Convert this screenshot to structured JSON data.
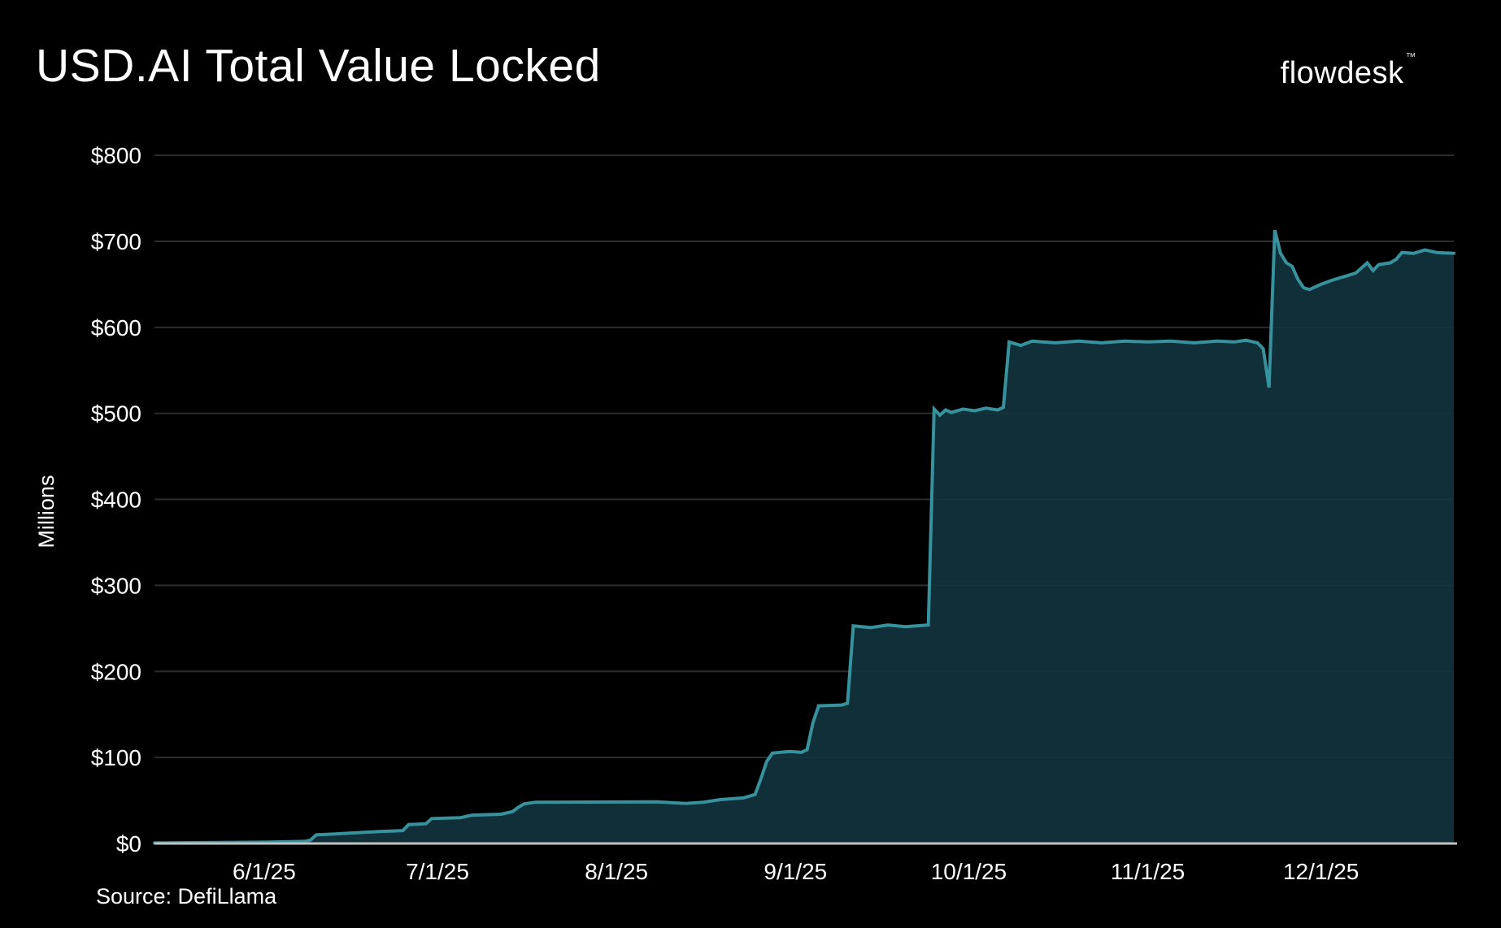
{
  "header": {
    "logo_text": "flowdesk",
    "logo_trademark": "™"
  },
  "chart_data": {
    "type": "area",
    "title": "USD.AI Total Value Locked",
    "ylabel": "Millions",
    "source": "Source: DefiLlama",
    "y_unit_prefix": "$",
    "ylim": [
      0,
      800
    ],
    "y_tick_step": 100,
    "y_tick_labels": [
      "$0",
      "$100",
      "$200",
      "$300",
      "$400",
      "$500",
      "$600",
      "$700",
      "$800"
    ],
    "x_range": [
      "2025-05-13",
      "2025-12-24"
    ],
    "x_ticks": [
      {
        "label": "6/1/25",
        "date": "2025-06-01"
      },
      {
        "label": "7/1/25",
        "date": "2025-07-01"
      },
      {
        "label": "8/1/25",
        "date": "2025-08-01"
      },
      {
        "label": "9/1/25",
        "date": "2025-09-01"
      },
      {
        "label": "10/1/25",
        "date": "2025-10-01"
      },
      {
        "label": "11/1/25",
        "date": "2025-11-01"
      },
      {
        "label": "12/1/25",
        "date": "2025-12-01"
      }
    ],
    "grid": true,
    "legend_position": "none",
    "series": [
      {
        "name": "USD.AI total value locked (USD millions)",
        "points": [
          [
            "2025-05-13",
            0.6
          ],
          [
            "2025-05-22",
            1.0
          ],
          [
            "2025-06-01",
            1.5
          ],
          [
            "2025-06-08",
            2.5
          ],
          [
            "2025-06-09",
            4
          ],
          [
            "2025-06-10",
            10
          ],
          [
            "2025-06-13",
            11
          ],
          [
            "2025-06-17",
            12.5
          ],
          [
            "2025-06-21",
            14
          ],
          [
            "2025-06-25",
            15
          ],
          [
            "2025-06-26",
            22
          ],
          [
            "2025-06-29",
            23
          ],
          [
            "2025-06-30",
            29
          ],
          [
            "2025-07-05",
            30
          ],
          [
            "2025-07-07",
            33
          ],
          [
            "2025-07-12",
            34
          ],
          [
            "2025-07-14",
            37
          ],
          [
            "2025-07-15",
            42
          ],
          [
            "2025-07-16",
            46
          ],
          [
            "2025-07-18",
            48
          ],
          [
            "2025-08-08",
            48.5
          ],
          [
            "2025-08-13",
            46.5
          ],
          [
            "2025-08-16",
            48
          ],
          [
            "2025-08-19",
            51
          ],
          [
            "2025-08-23",
            53
          ],
          [
            "2025-08-25",
            57
          ],
          [
            "2025-08-26",
            75
          ],
          [
            "2025-08-27",
            95
          ],
          [
            "2025-08-28",
            105
          ],
          [
            "2025-08-31",
            107
          ],
          [
            "2025-09-02",
            106
          ],
          [
            "2025-09-03",
            109
          ],
          [
            "2025-09-04",
            140
          ],
          [
            "2025-09-05",
            160
          ],
          [
            "2025-09-09",
            161
          ],
          [
            "2025-09-10",
            163
          ],
          [
            "2025-09-11",
            253
          ],
          [
            "2025-09-14",
            251
          ],
          [
            "2025-09-17",
            254
          ],
          [
            "2025-09-20",
            252
          ],
          [
            "2025-09-24",
            254
          ],
          [
            "2025-09-25",
            505
          ],
          [
            "2025-09-26",
            498
          ],
          [
            "2025-09-27",
            504
          ],
          [
            "2025-09-28",
            501
          ],
          [
            "2025-09-30",
            505
          ],
          [
            "2025-10-02",
            503
          ],
          [
            "2025-10-04",
            506
          ],
          [
            "2025-10-06",
            504
          ],
          [
            "2025-10-07",
            507
          ],
          [
            "2025-10-08",
            583
          ],
          [
            "2025-10-10",
            579
          ],
          [
            "2025-10-12",
            584
          ],
          [
            "2025-10-16",
            582
          ],
          [
            "2025-10-20",
            584
          ],
          [
            "2025-10-24",
            582
          ],
          [
            "2025-10-28",
            584
          ],
          [
            "2025-11-01",
            583
          ],
          [
            "2025-11-05",
            584
          ],
          [
            "2025-11-09",
            582
          ],
          [
            "2025-11-13",
            584
          ],
          [
            "2025-11-16",
            583
          ],
          [
            "2025-11-18",
            585
          ],
          [
            "2025-11-20",
            582
          ],
          [
            "2025-11-21",
            575
          ],
          [
            "2025-11-22",
            530
          ],
          [
            "2025-11-23",
            713
          ],
          [
            "2025-11-24",
            686
          ],
          [
            "2025-11-25",
            675
          ],
          [
            "2025-11-26",
            671
          ],
          [
            "2025-11-27",
            656
          ],
          [
            "2025-11-28",
            646
          ],
          [
            "2025-11-29",
            644
          ],
          [
            "2025-12-01",
            650
          ],
          [
            "2025-12-03",
            655
          ],
          [
            "2025-12-05",
            659
          ],
          [
            "2025-12-07",
            663
          ],
          [
            "2025-12-08",
            669
          ],
          [
            "2025-12-09",
            675
          ],
          [
            "2025-12-10",
            666
          ],
          [
            "2025-12-11",
            673
          ],
          [
            "2025-12-13",
            675
          ],
          [
            "2025-12-14",
            679
          ],
          [
            "2025-12-15",
            687
          ],
          [
            "2025-12-17",
            686
          ],
          [
            "2025-12-19",
            690
          ],
          [
            "2025-12-21",
            687
          ],
          [
            "2025-12-24",
            686
          ]
        ]
      }
    ],
    "colors": {
      "background": "#000000",
      "line": "#37929e",
      "fill": "#123640",
      "grid": "#2d2d2d",
      "zero_line": "#c2c2c2",
      "text": "#ffffff"
    }
  }
}
